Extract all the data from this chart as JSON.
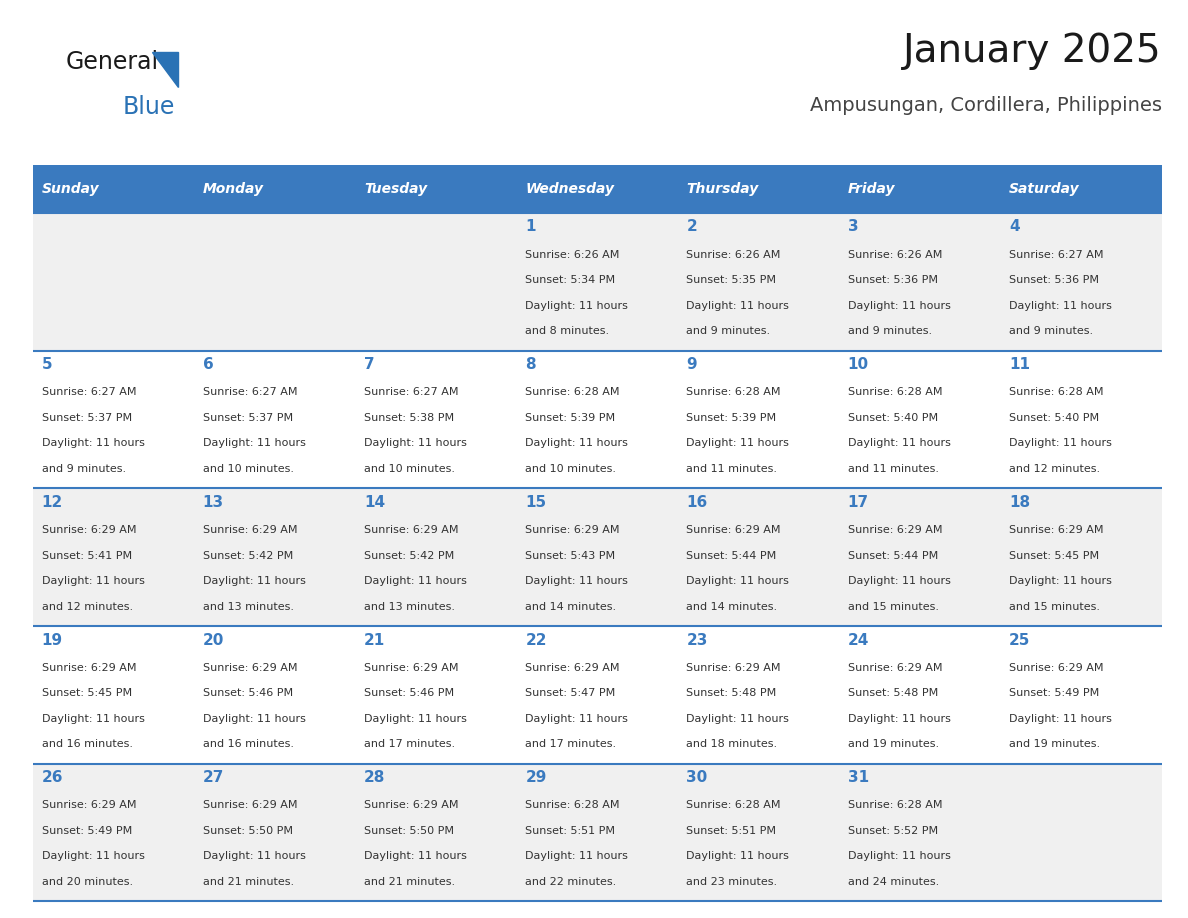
{
  "title": "January 2025",
  "subtitle": "Ampusungan, Cordillera, Philippines",
  "header_bg": "#3a7abf",
  "header_text_color": "#ffffff",
  "days_of_week": [
    "Sunday",
    "Monday",
    "Tuesday",
    "Wednesday",
    "Thursday",
    "Friday",
    "Saturday"
  ],
  "row_bg_odd": "#f0f0f0",
  "row_bg_even": "#ffffff",
  "separator_color": "#3a7abf",
  "day_number_color": "#3a7abf",
  "text_color": "#333333",
  "calendar": [
    [
      {
        "day": "",
        "sunrise": "",
        "sunset": "",
        "daylight_hours": "",
        "daylight_mins": ""
      },
      {
        "day": "",
        "sunrise": "",
        "sunset": "",
        "daylight_hours": "",
        "daylight_mins": ""
      },
      {
        "day": "",
        "sunrise": "",
        "sunset": "",
        "daylight_hours": "",
        "daylight_mins": ""
      },
      {
        "day": "1",
        "sunrise": "6:26 AM",
        "sunset": "5:34 PM",
        "daylight_hours": "11 hours",
        "daylight_mins": "and 8 minutes."
      },
      {
        "day": "2",
        "sunrise": "6:26 AM",
        "sunset": "5:35 PM",
        "daylight_hours": "11 hours",
        "daylight_mins": "and 9 minutes."
      },
      {
        "day": "3",
        "sunrise": "6:26 AM",
        "sunset": "5:36 PM",
        "daylight_hours": "11 hours",
        "daylight_mins": "and 9 minutes."
      },
      {
        "day": "4",
        "sunrise": "6:27 AM",
        "sunset": "5:36 PM",
        "daylight_hours": "11 hours",
        "daylight_mins": "and 9 minutes."
      }
    ],
    [
      {
        "day": "5",
        "sunrise": "6:27 AM",
        "sunset": "5:37 PM",
        "daylight_hours": "11 hours",
        "daylight_mins": "and 9 minutes."
      },
      {
        "day": "6",
        "sunrise": "6:27 AM",
        "sunset": "5:37 PM",
        "daylight_hours": "11 hours",
        "daylight_mins": "and 10 minutes."
      },
      {
        "day": "7",
        "sunrise": "6:27 AM",
        "sunset": "5:38 PM",
        "daylight_hours": "11 hours",
        "daylight_mins": "and 10 minutes."
      },
      {
        "day": "8",
        "sunrise": "6:28 AM",
        "sunset": "5:39 PM",
        "daylight_hours": "11 hours",
        "daylight_mins": "and 10 minutes."
      },
      {
        "day": "9",
        "sunrise": "6:28 AM",
        "sunset": "5:39 PM",
        "daylight_hours": "11 hours",
        "daylight_mins": "and 11 minutes."
      },
      {
        "day": "10",
        "sunrise": "6:28 AM",
        "sunset": "5:40 PM",
        "daylight_hours": "11 hours",
        "daylight_mins": "and 11 minutes."
      },
      {
        "day": "11",
        "sunrise": "6:28 AM",
        "sunset": "5:40 PM",
        "daylight_hours": "11 hours",
        "daylight_mins": "and 12 minutes."
      }
    ],
    [
      {
        "day": "12",
        "sunrise": "6:29 AM",
        "sunset": "5:41 PM",
        "daylight_hours": "11 hours",
        "daylight_mins": "and 12 minutes."
      },
      {
        "day": "13",
        "sunrise": "6:29 AM",
        "sunset": "5:42 PM",
        "daylight_hours": "11 hours",
        "daylight_mins": "and 13 minutes."
      },
      {
        "day": "14",
        "sunrise": "6:29 AM",
        "sunset": "5:42 PM",
        "daylight_hours": "11 hours",
        "daylight_mins": "and 13 minutes."
      },
      {
        "day": "15",
        "sunrise": "6:29 AM",
        "sunset": "5:43 PM",
        "daylight_hours": "11 hours",
        "daylight_mins": "and 14 minutes."
      },
      {
        "day": "16",
        "sunrise": "6:29 AM",
        "sunset": "5:44 PM",
        "daylight_hours": "11 hours",
        "daylight_mins": "and 14 minutes."
      },
      {
        "day": "17",
        "sunrise": "6:29 AM",
        "sunset": "5:44 PM",
        "daylight_hours": "11 hours",
        "daylight_mins": "and 15 minutes."
      },
      {
        "day": "18",
        "sunrise": "6:29 AM",
        "sunset": "5:45 PM",
        "daylight_hours": "11 hours",
        "daylight_mins": "and 15 minutes."
      }
    ],
    [
      {
        "day": "19",
        "sunrise": "6:29 AM",
        "sunset": "5:45 PM",
        "daylight_hours": "11 hours",
        "daylight_mins": "and 16 minutes."
      },
      {
        "day": "20",
        "sunrise": "6:29 AM",
        "sunset": "5:46 PM",
        "daylight_hours": "11 hours",
        "daylight_mins": "and 16 minutes."
      },
      {
        "day": "21",
        "sunrise": "6:29 AM",
        "sunset": "5:46 PM",
        "daylight_hours": "11 hours",
        "daylight_mins": "and 17 minutes."
      },
      {
        "day": "22",
        "sunrise": "6:29 AM",
        "sunset": "5:47 PM",
        "daylight_hours": "11 hours",
        "daylight_mins": "and 17 minutes."
      },
      {
        "day": "23",
        "sunrise": "6:29 AM",
        "sunset": "5:48 PM",
        "daylight_hours": "11 hours",
        "daylight_mins": "and 18 minutes."
      },
      {
        "day": "24",
        "sunrise": "6:29 AM",
        "sunset": "5:48 PM",
        "daylight_hours": "11 hours",
        "daylight_mins": "and 19 minutes."
      },
      {
        "day": "25",
        "sunrise": "6:29 AM",
        "sunset": "5:49 PM",
        "daylight_hours": "11 hours",
        "daylight_mins": "and 19 minutes."
      }
    ],
    [
      {
        "day": "26",
        "sunrise": "6:29 AM",
        "sunset": "5:49 PM",
        "daylight_hours": "11 hours",
        "daylight_mins": "and 20 minutes."
      },
      {
        "day": "27",
        "sunrise": "6:29 AM",
        "sunset": "5:50 PM",
        "daylight_hours": "11 hours",
        "daylight_mins": "and 21 minutes."
      },
      {
        "day": "28",
        "sunrise": "6:29 AM",
        "sunset": "5:50 PM",
        "daylight_hours": "11 hours",
        "daylight_mins": "and 21 minutes."
      },
      {
        "day": "29",
        "sunrise": "6:28 AM",
        "sunset": "5:51 PM",
        "daylight_hours": "11 hours",
        "daylight_mins": "and 22 minutes."
      },
      {
        "day": "30",
        "sunrise": "6:28 AM",
        "sunset": "5:51 PM",
        "daylight_hours": "11 hours",
        "daylight_mins": "and 23 minutes."
      },
      {
        "day": "31",
        "sunrise": "6:28 AM",
        "sunset": "5:52 PM",
        "daylight_hours": "11 hours",
        "daylight_mins": "and 24 minutes."
      },
      {
        "day": "",
        "sunrise": "",
        "sunset": "",
        "daylight_hours": "",
        "daylight_mins": ""
      }
    ]
  ]
}
